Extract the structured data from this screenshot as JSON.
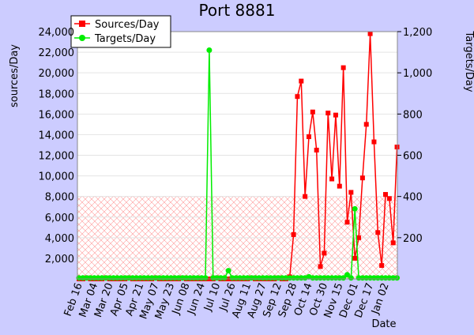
{
  "chart_data": {
    "type": "line",
    "title": "Port 8881",
    "y_label": "sources/Day",
    "y2_label": "Targets/Day",
    "x_label": "Date",
    "categories": [
      "Feb 16",
      null,
      null,
      null,
      "Mar 04",
      null,
      null,
      null,
      "Mar 20",
      null,
      null,
      null,
      "Apr 05",
      null,
      null,
      null,
      "Apr 21",
      null,
      null,
      null,
      "May 07",
      null,
      null,
      null,
      "May 23",
      null,
      null,
      null,
      "Jun 08",
      null,
      null,
      null,
      "Jun 24",
      null,
      null,
      null,
      "Jul 10",
      null,
      null,
      null,
      "Jul 26",
      null,
      null,
      null,
      "Aug 11",
      null,
      null,
      null,
      "Aug 27",
      null,
      null,
      null,
      "Sep 12",
      null,
      null,
      null,
      "Sep 28",
      null,
      null,
      null,
      "Oct 14",
      null,
      null,
      null,
      "Oct 30",
      null,
      null,
      null,
      "Nov 15",
      null,
      null,
      null,
      "Dec 01",
      null,
      null,
      null,
      "Dec 17",
      null,
      null,
      null,
      "Jan 02",
      null,
      null,
      null
    ],
    "series": [
      {
        "name": "Sources/Day",
        "color": "#ff0000",
        "marker": "square",
        "values": [
          0,
          0,
          100,
          0,
          0,
          0,
          0,
          100,
          0,
          0,
          0,
          0,
          0,
          100,
          0,
          0,
          0,
          0,
          0,
          0,
          100,
          0,
          0,
          0,
          0,
          0,
          0,
          100,
          0,
          0,
          0,
          0,
          0,
          0,
          0,
          0,
          100,
          0,
          0,
          0,
          0,
          0,
          0,
          0,
          0,
          100,
          0,
          0,
          0,
          0,
          0,
          0,
          100,
          0,
          0,
          200,
          4300,
          17700,
          19200,
          8000,
          13800,
          16200,
          12500,
          1200,
          2500,
          16100,
          9700,
          15900,
          9000,
          20500,
          5500,
          8400,
          2000,
          4000,
          9800,
          15000,
          23800,
          13300,
          4500,
          1300,
          8200,
          7800,
          3500,
          12800
        ]
      },
      {
        "name": "Targets/Day",
        "color": "#00ee00",
        "marker": "circle",
        "axis": "y2",
        "values": [
          5,
          5,
          5,
          5,
          5,
          5,
          5,
          5,
          5,
          5,
          5,
          5,
          5,
          5,
          5,
          5,
          5,
          5,
          5,
          5,
          5,
          5,
          5,
          5,
          5,
          5,
          5,
          5,
          5,
          5,
          5,
          5,
          5,
          5,
          1110,
          5,
          5,
          5,
          5,
          40,
          5,
          5,
          5,
          5,
          5,
          5,
          5,
          5,
          5,
          5,
          5,
          5,
          5,
          5,
          5,
          5,
          5,
          5,
          5,
          5,
          10,
          5,
          5,
          5,
          5,
          5,
          5,
          5,
          5,
          5,
          20,
          5,
          340,
          5,
          5,
          5,
          5,
          5,
          5,
          5,
          5,
          5,
          5,
          5
        ]
      }
    ],
    "ylim": [
      0,
      24000
    ],
    "yticks": [
      {
        "value": 2000,
        "label": "2,000"
      },
      {
        "value": 4000,
        "label": "4,000"
      },
      {
        "value": 6000,
        "label": "6,000"
      },
      {
        "value": 8000,
        "label": "8,000"
      },
      {
        "value": 10000,
        "label": "10,000"
      },
      {
        "value": 12000,
        "label": "12,000"
      },
      {
        "value": 14000,
        "label": "14,000"
      },
      {
        "value": 16000,
        "label": "16,000"
      },
      {
        "value": 18000,
        "label": "18,000"
      },
      {
        "value": 20000,
        "label": "20,000"
      },
      {
        "value": 22000,
        "label": "22,000"
      },
      {
        "value": 24000,
        "label": "24,000"
      }
    ],
    "y2lim": [
      0,
      1200
    ],
    "y2ticks": [
      200,
      400,
      600,
      800,
      {
        "value": 1000,
        "label": "1,000"
      },
      {
        "value": 1200,
        "label": "1,200"
      }
    ],
    "grid": true,
    "legend": "top-left"
  }
}
